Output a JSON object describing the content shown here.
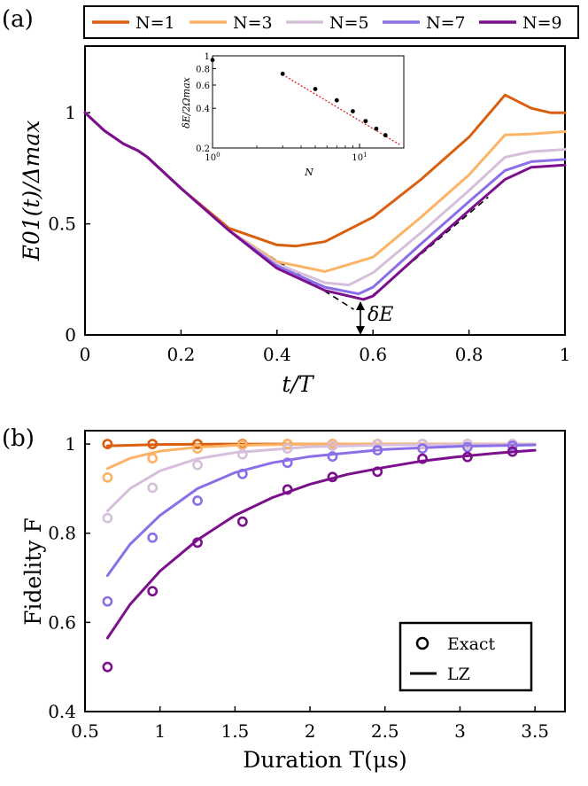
{
  "chart_data": [
    {
      "panel": "(a)",
      "type": "line",
      "xlabel": "t/T",
      "ylabel": "E01(t)/Δmax",
      "xlim": [
        0,
        1
      ],
      "ylim": [
        0,
        1.3
      ],
      "xticks": [
        "0",
        "0.2",
        "0.4",
        "0.6",
        "0.8",
        "1"
      ],
      "yticks": [
        "0",
        "0.5",
        "1"
      ],
      "legend": [
        "N=1",
        "N=3",
        "N=5",
        "N=7",
        "N=9"
      ],
      "annotation": "δE",
      "series": [
        {
          "name": "N=1",
          "color": "#d95f0e",
          "x": [
            0,
            0.04,
            0.08,
            0.11,
            0.13,
            0.2,
            0.3,
            0.4,
            0.44,
            0.5,
            0.6,
            0.7,
            0.8,
            0.875,
            0.93,
            0.97,
            1.0
          ],
          "y": [
            1.0,
            0.92,
            0.86,
            0.83,
            0.8,
            0.66,
            0.48,
            0.405,
            0.4,
            0.42,
            0.53,
            0.7,
            0.89,
            1.08,
            1.02,
            1.0,
            1.0
          ]
        },
        {
          "name": "N=3",
          "color": "#fdb366",
          "x": [
            0,
            0.04,
            0.08,
            0.11,
            0.13,
            0.2,
            0.3,
            0.4,
            0.5,
            0.6,
            0.7,
            0.8,
            0.875,
            0.93,
            1.0
          ],
          "y": [
            1.0,
            0.92,
            0.86,
            0.83,
            0.8,
            0.66,
            0.47,
            0.33,
            0.285,
            0.35,
            0.53,
            0.72,
            0.9,
            0.905,
            0.915
          ]
        },
        {
          "name": "N=5",
          "color": "#d7bfdc",
          "x": [
            0,
            0.04,
            0.08,
            0.11,
            0.13,
            0.2,
            0.3,
            0.4,
            0.5,
            0.55,
            0.6,
            0.7,
            0.8,
            0.875,
            0.93,
            1.0
          ],
          "y": [
            1.0,
            0.92,
            0.86,
            0.83,
            0.8,
            0.66,
            0.47,
            0.32,
            0.235,
            0.225,
            0.28,
            0.46,
            0.65,
            0.8,
            0.825,
            0.835
          ]
        },
        {
          "name": "N=7",
          "color": "#8a6fe8",
          "x": [
            0,
            0.04,
            0.08,
            0.11,
            0.13,
            0.2,
            0.3,
            0.4,
            0.5,
            0.57,
            0.6,
            0.7,
            0.8,
            0.875,
            0.93,
            1.0
          ],
          "y": [
            1.0,
            0.92,
            0.86,
            0.83,
            0.8,
            0.66,
            0.47,
            0.31,
            0.215,
            0.185,
            0.215,
            0.41,
            0.6,
            0.74,
            0.78,
            0.79
          ]
        },
        {
          "name": "N=9",
          "color": "#7b0f8c",
          "x": [
            0,
            0.04,
            0.08,
            0.11,
            0.13,
            0.2,
            0.3,
            0.4,
            0.5,
            0.58,
            0.6,
            0.7,
            0.8,
            0.875,
            0.93,
            1.0
          ],
          "y": [
            1.0,
            0.92,
            0.86,
            0.83,
            0.8,
            0.66,
            0.47,
            0.3,
            0.2,
            0.16,
            0.175,
            0.37,
            0.56,
            0.7,
            0.755,
            0.765
          ]
        }
      ],
      "asymptotes": [
        {
          "x": [
            0.33,
            0.56
          ],
          "y": [
            0.43,
            0.115
          ]
        },
        {
          "x": [
            0.6,
            0.84
          ],
          "y": [
            0.18,
            0.62
          ]
        }
      ],
      "inset": {
        "type": "scatter",
        "xscale": "log",
        "yscale": "log",
        "xlabel": "N",
        "ylabel": "δE/2Ωmax",
        "xlim": [
          1,
          20
        ],
        "ylim": [
          0.2,
          1
        ],
        "xticks": [
          "10^0",
          "10^1"
        ],
        "yticks": [
          "0.2",
          "0.4",
          "0.6",
          "0.8",
          "1"
        ],
        "points": {
          "x": [
            1,
            3,
            5,
            7,
            9,
            11,
            13,
            15
          ],
          "y": [
            0.93,
            0.73,
            0.56,
            0.46,
            0.38,
            0.32,
            0.28,
            0.25
          ]
        },
        "fit": {
          "x": [
            3,
            19
          ],
          "y": [
            0.72,
            0.21
          ]
        }
      }
    },
    {
      "panel": "(b)",
      "type": "scatter",
      "xlabel": "Duration T(μs)",
      "ylabel": "Fidelity F",
      "xlim": [
        0.5,
        3.7
      ],
      "ylim": [
        0.4,
        1.03
      ],
      "xticks": [
        "0.5",
        "1",
        "1.5",
        "2",
        "2.5",
        "3",
        "3.5"
      ],
      "yticks": [
        "0.4",
        "0.6",
        "0.8",
        "1"
      ],
      "legend": [
        "Exact",
        "LZ"
      ],
      "x": [
        0.65,
        0.95,
        1.25,
        1.55,
        1.85,
        2.15,
        2.45,
        2.75,
        3.05,
        3.35
      ],
      "series": [
        {
          "name": "N=1",
          "color": "#d95f0e",
          "exact": [
            1.0,
            1.0,
            1.0,
            1.0,
            1.0,
            1.0,
            1.0,
            1.0,
            1.0,
            1.0
          ],
          "lz_x": [
            0.65,
            1.0,
            1.5,
            2.0,
            2.5,
            3.0,
            3.5
          ],
          "lz": [
            0.996,
            0.999,
            1.0,
            1.0,
            1.0,
            1.0,
            1.0
          ]
        },
        {
          "name": "N=3",
          "color": "#fdb366",
          "exact": [
            0.925,
            0.968,
            0.99,
            0.998,
            1.0,
            1.0,
            1.0,
            1.0,
            1.0,
            1.0
          ],
          "lz_x": [
            0.65,
            0.8,
            1.0,
            1.25,
            1.5,
            2.0,
            2.5,
            3.0,
            3.5
          ],
          "lz": [
            0.945,
            0.968,
            0.984,
            0.993,
            0.997,
            1.0,
            1.0,
            1.0,
            1.0
          ]
        },
        {
          "name": "N=5",
          "color": "#d7bfdc",
          "exact": [
            0.834,
            0.902,
            0.953,
            0.977,
            0.99,
            0.996,
            0.999,
            1.0,
            1.0,
            1.0
          ],
          "lz_x": [
            0.65,
            0.8,
            1.0,
            1.25,
            1.5,
            2.0,
            2.5,
            3.0,
            3.5
          ],
          "lz": [
            0.85,
            0.9,
            0.94,
            0.967,
            0.981,
            0.994,
            0.998,
            0.999,
            1.0
          ]
        },
        {
          "name": "N=7",
          "color": "#8a6fe8",
          "exact": [
            0.647,
            0.79,
            0.873,
            0.933,
            0.958,
            0.972,
            0.986,
            0.99,
            0.993,
            0.996
          ],
          "lz_x": [
            0.65,
            0.8,
            1.0,
            1.25,
            1.5,
            1.75,
            2.0,
            2.5,
            3.0,
            3.5
          ],
          "lz": [
            0.705,
            0.775,
            0.84,
            0.9,
            0.936,
            0.958,
            0.972,
            0.988,
            0.995,
            0.998
          ]
        },
        {
          "name": "N=9",
          "color": "#7b0f8c",
          "exact": [
            0.5,
            0.67,
            0.779,
            0.826,
            0.898,
            0.926,
            0.938,
            0.967,
            0.971,
            0.983
          ],
          "lz_x": [
            0.65,
            0.8,
            1.0,
            1.25,
            1.5,
            1.75,
            2.0,
            2.25,
            2.5,
            2.75,
            3.0,
            3.25,
            3.5
          ],
          "lz": [
            0.565,
            0.64,
            0.715,
            0.785,
            0.84,
            0.88,
            0.91,
            0.932,
            0.948,
            0.962,
            0.972,
            0.98,
            0.986
          ]
        }
      ]
    }
  ]
}
